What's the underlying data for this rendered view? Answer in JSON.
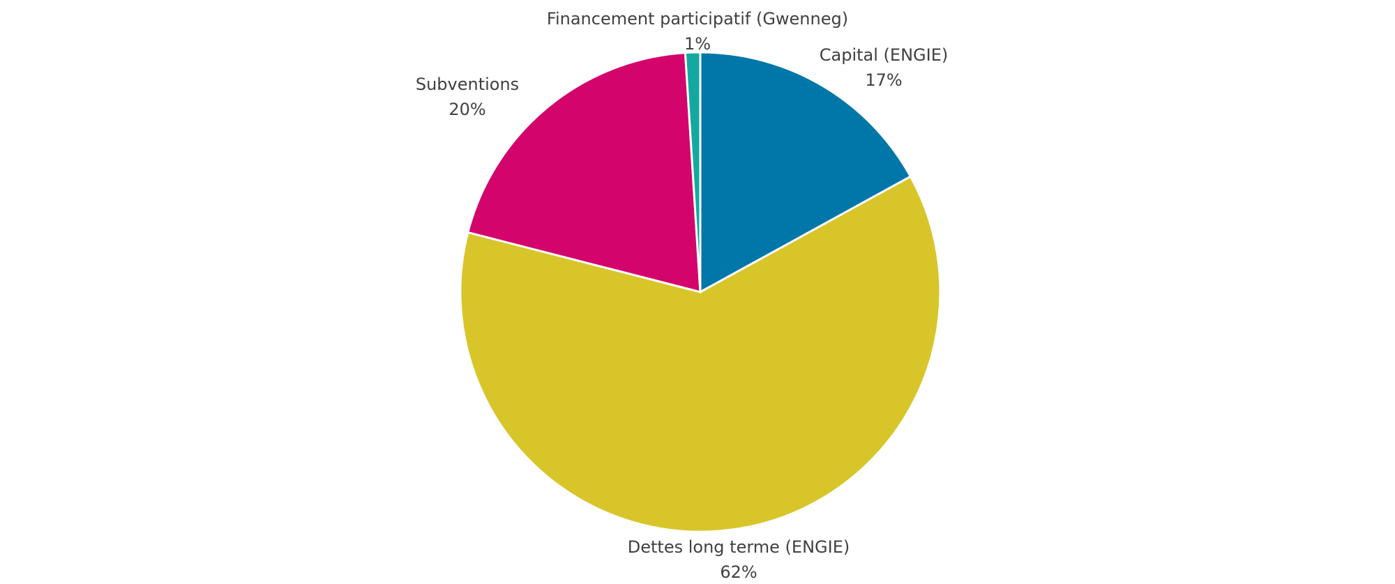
{
  "chart_data": {
    "type": "pie",
    "categories": [
      "Capital (ENGIE)",
      "Dettes long terme (ENGIE)",
      "Subventions",
      "Financement participatif (Gwenneg)"
    ],
    "values": [
      17,
      62,
      20,
      1
    ],
    "value_labels": [
      "17%",
      "62%",
      "20%",
      "1%"
    ],
    "colors": [
      "#0077a8",
      "#d8c52a",
      "#d3046b",
      "#14a9a0"
    ]
  }
}
